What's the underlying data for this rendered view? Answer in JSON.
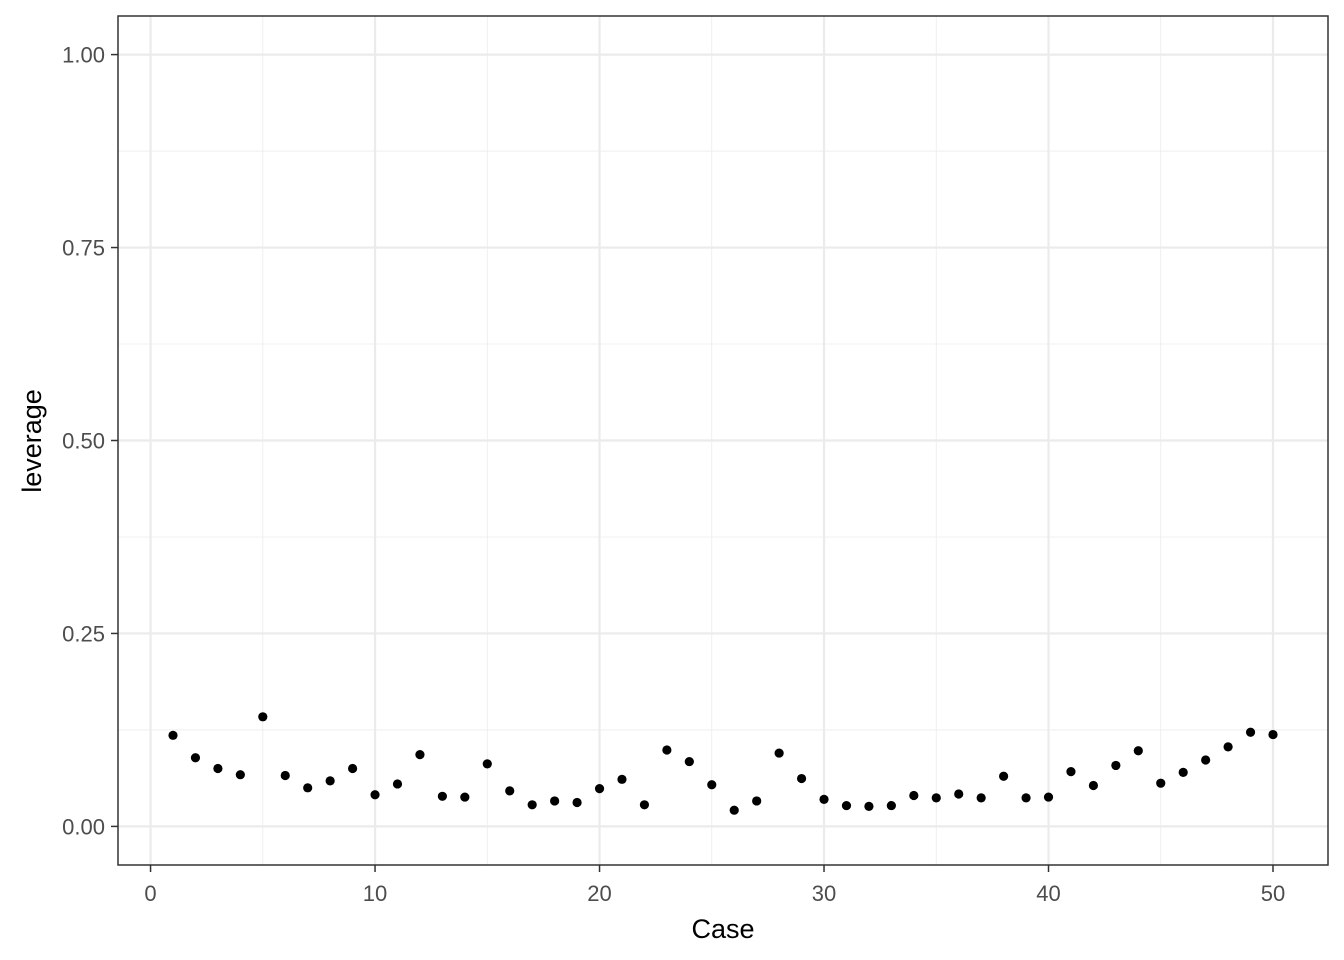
{
  "chart_data": {
    "type": "scatter",
    "title": "",
    "xlabel": "Case",
    "ylabel": "leverage",
    "xlim": [
      -1.45,
      52.45
    ],
    "ylim": [
      -0.05,
      1.05
    ],
    "x_ticks": [
      0,
      10,
      20,
      30,
      40,
      50
    ],
    "x_tick_labels": [
      "0",
      "10",
      "20",
      "30",
      "40",
      "50"
    ],
    "y_ticks": [
      0,
      0.25,
      0.5,
      0.75,
      1.0
    ],
    "y_tick_labels": [
      "0.00",
      "0.25",
      "0.50",
      "0.75",
      "1.00"
    ],
    "grid": true,
    "legend": "none",
    "point_color": "#000000",
    "x": [
      1,
      2,
      3,
      4,
      5,
      6,
      7,
      8,
      9,
      10,
      11,
      12,
      13,
      14,
      15,
      16,
      17,
      18,
      19,
      20,
      21,
      22,
      23,
      24,
      25,
      26,
      27,
      28,
      29,
      30,
      31,
      32,
      33,
      34,
      35,
      36,
      37,
      38,
      39,
      40,
      41,
      42,
      43,
      44,
      45,
      46,
      47,
      48,
      49,
      50
    ],
    "y": [
      0.118,
      0.089,
      0.075,
      0.067,
      0.142,
      0.066,
      0.05,
      0.059,
      0.075,
      0.041,
      0.055,
      0.093,
      0.039,
      0.038,
      0.081,
      0.046,
      0.028,
      0.033,
      0.031,
      0.049,
      0.061,
      0.028,
      0.099,
      0.084,
      0.054,
      0.021,
      0.033,
      0.095,
      0.062,
      0.035,
      0.027,
      0.026,
      0.027,
      0.04,
      0.037,
      0.042,
      0.037,
      0.065,
      0.037,
      0.038,
      0.071,
      0.053,
      0.079,
      0.098,
      0.056,
      0.07,
      0.086,
      0.103,
      0.122,
      0.119
    ]
  }
}
